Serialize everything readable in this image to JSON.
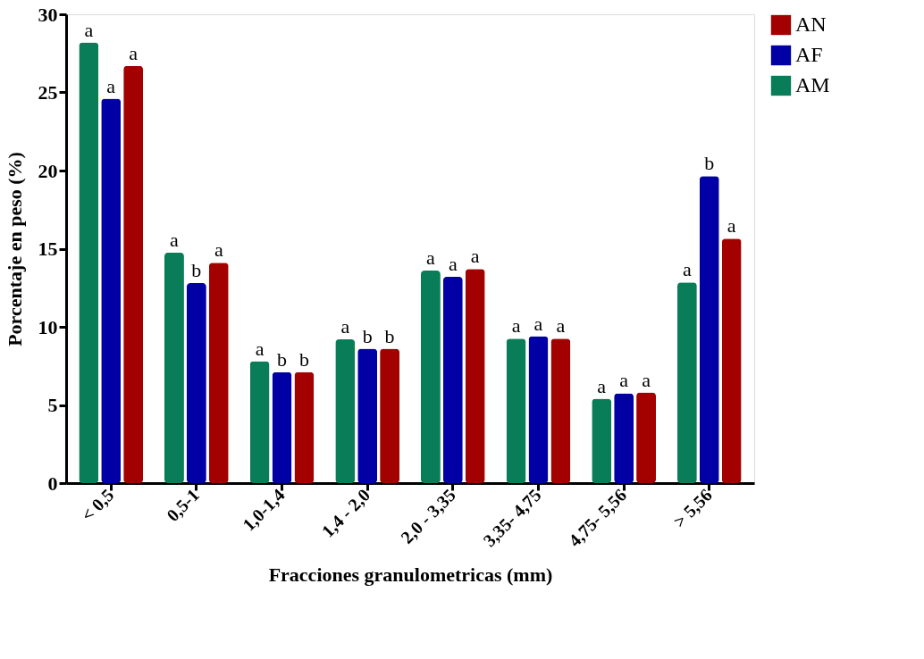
{
  "chart_data": {
    "type": "bar",
    "xlabel": "Fracciones granulometricas  (mm)",
    "ylabel": "Porcentaje en peso (%)",
    "categories": [
      "< 0,5",
      "0,5-1",
      "1,0-1,4",
      "1,4 - 2,0",
      "2,0 - 3,35",
      "3,35- 4,75",
      "4,75- 5,56",
      "> 5,56"
    ],
    "series": [
      {
        "name": "AM",
        "color": "#087d57",
        "values": [
          28.2,
          14.75,
          7.8,
          9.2,
          13.6,
          9.25,
          5.4,
          12.85
        ],
        "value_labels": [
          "a",
          "a",
          "a",
          "a",
          "a",
          "a",
          "a",
          "a"
        ]
      },
      {
        "name": "AF",
        "color": "#0000a5",
        "values": [
          24.6,
          12.8,
          7.1,
          8.6,
          13.2,
          9.4,
          5.75,
          19.65
        ],
        "value_labels": [
          "a",
          "b",
          "b",
          "b",
          "a",
          "a",
          "a",
          "b"
        ]
      },
      {
        "name": "AN",
        "color": "#a30000",
        "values": [
          26.7,
          14.1,
          7.1,
          8.6,
          13.7,
          9.25,
          5.8,
          15.65
        ],
        "value_labels": [
          "a",
          "a",
          "b",
          "b",
          "a",
          "a",
          "a",
          "a"
        ]
      }
    ],
    "ylim": [
      0,
      30
    ],
    "yticks": [
      0,
      5,
      10,
      15,
      20,
      25,
      30
    ],
    "grid": false,
    "legend": "top right"
  }
}
